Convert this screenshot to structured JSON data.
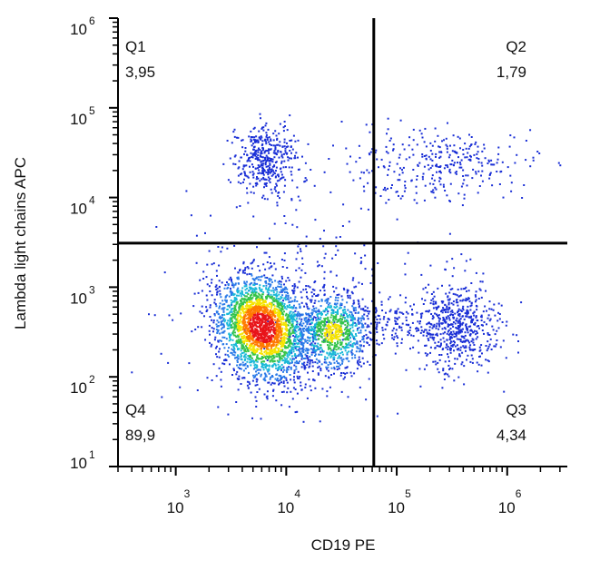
{
  "chart_data": {
    "type": "flow-density",
    "x_label": "CD19 PE",
    "y_label": "Lambda light chains APC",
    "x_log": true,
    "y_log": true,
    "xlim": [
      300,
      3500000
    ],
    "ylim": [
      10,
      1000000
    ],
    "xticks": [
      {
        "value": 1000,
        "label": "10",
        "power": "3"
      },
      {
        "value": 10000,
        "label": "10",
        "power": "4"
      },
      {
        "value": 100000,
        "label": "10",
        "power": "5"
      },
      {
        "value": 1000000,
        "label": "10",
        "power": "6"
      }
    ],
    "yticks": [
      {
        "value": 10,
        "label": "10",
        "power": "1"
      },
      {
        "value": 100,
        "label": "10",
        "power": "2"
      },
      {
        "value": 1000,
        "label": "10",
        "power": "3"
      },
      {
        "value": 10000,
        "label": "10",
        "power": "4"
      },
      {
        "value": 100000,
        "label": "10",
        "power": "5"
      },
      {
        "value": 1000000,
        "label": "10",
        "power": "6"
      }
    ],
    "minor_ticks": true,
    "gate": {
      "x": 62000,
      "y": 3100,
      "color": "#000000"
    },
    "quadrants": [
      {
        "name": "Q1",
        "value": 3.95,
        "value_label": "3,95",
        "corner": "top-left"
      },
      {
        "name": "Q2",
        "value": 1.79,
        "value_label": "1,79",
        "corner": "top-right"
      },
      {
        "name": "Q3",
        "value": 4.34,
        "value_label": "4,34",
        "corner": "bottom-right"
      },
      {
        "name": "Q4",
        "value": 89.9,
        "value_label": "89,9",
        "corner": "bottom-left"
      }
    ]
  }
}
